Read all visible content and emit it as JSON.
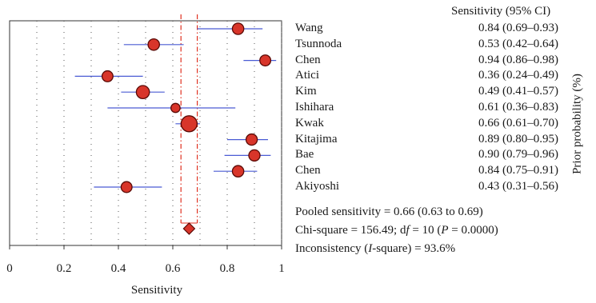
{
  "chart_data": {
    "type": "forest",
    "xlabel": "Sensitivity",
    "xlim": [
      0,
      1
    ],
    "xticks": [
      0,
      0.2,
      0.4,
      0.6,
      0.8,
      1
    ],
    "xtick_labels": [
      "0",
      "0.2",
      "0.4",
      "0.6",
      "0.8",
      "1"
    ],
    "grid": "vertical dotted",
    "ci_header": "Sensitivity (95% CI)",
    "side_label": "Prior probability (%)",
    "studies": [
      {
        "name": "Wang",
        "estimate": 0.84,
        "lower": 0.69,
        "upper": 0.93,
        "ci_text": "0.84 (0.69–0.93)",
        "weight": 0.35
      },
      {
        "name": "Tsunnoda",
        "estimate": 0.53,
        "lower": 0.42,
        "upper": 0.64,
        "ci_text": "0.53 (0.42–0.64)",
        "weight": 0.35
      },
      {
        "name": "Chen",
        "estimate": 0.94,
        "lower": 0.86,
        "upper": 0.98,
        "ci_text": "0.94 (0.86–0.98)",
        "weight": 0.3
      },
      {
        "name": "Atici",
        "estimate": 0.36,
        "lower": 0.24,
        "upper": 0.49,
        "ci_text": "0.36 (0.24–0.49)",
        "weight": 0.3
      },
      {
        "name": "Kim",
        "estimate": 0.49,
        "lower": 0.41,
        "upper": 0.57,
        "ci_text": "0.49 (0.41–0.57)",
        "weight": 0.55
      },
      {
        "name": "Ishihara",
        "estimate": 0.61,
        "lower": 0.36,
        "upper": 0.83,
        "ci_text": "0.61 (0.36–0.83)",
        "weight": 0.15
      },
      {
        "name": "Kwak",
        "estimate": 0.66,
        "lower": 0.61,
        "upper": 0.7,
        "ci_text": "0.66 (0.61–0.70)",
        "weight": 1.0
      },
      {
        "name": "Kitajima",
        "estimate": 0.89,
        "lower": 0.8,
        "upper": 0.95,
        "ci_text": "0.89 (0.80–0.95)",
        "weight": 0.33
      },
      {
        "name": "Bae",
        "estimate": 0.9,
        "lower": 0.79,
        "upper": 0.96,
        "ci_text": "0.90 (0.79–0.96)",
        "weight": 0.33
      },
      {
        "name": "Chen",
        "estimate": 0.84,
        "lower": 0.75,
        "upper": 0.91,
        "ci_text": "0.84 (0.75–0.91)",
        "weight": 0.35
      },
      {
        "name": "Akiyoshi",
        "estimate": 0.43,
        "lower": 0.31,
        "upper": 0.56,
        "ci_text": "0.43 (0.31–0.56)",
        "weight": 0.3
      }
    ],
    "pooled": {
      "estimate": 0.66,
      "lower": 0.63,
      "upper": 0.69
    },
    "stats": {
      "pooled_text": "Pooled sensitivity = 0.66 (0.63 to 0.69)",
      "chi_prefix": "Chi-square = 156.49; d",
      "chi_df_f": "f",
      "chi_mid": " = 10 (",
      "chi_p": "P",
      "chi_suffix": " = 0.0000)",
      "incons_prefix": "Inconsistency (",
      "incons_i": "I",
      "incons_suffix": "-square) = 93.6%"
    },
    "colors": {
      "point_fill": "#d8352a",
      "point_stroke": "#5a0a06",
      "ci_line": "#4a5bd4",
      "pooled_line": "#e03020",
      "grid": "#555555",
      "axis": "#333333"
    }
  }
}
